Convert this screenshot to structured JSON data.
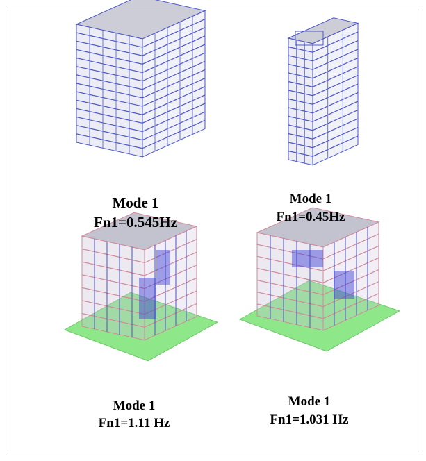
{
  "panels": [
    {
      "mode": "Mode 1",
      "frequency": "Fn1=0.545Hz"
    },
    {
      "mode": "Mode 1",
      "frequency": "Fn1=0.45Hz"
    },
    {
      "mode": "Mode 1",
      "frequency": "Fn1=1.11 Hz"
    },
    {
      "mode": "Mode 1",
      "frequency": "Fn1=1.031 Hz"
    }
  ]
}
